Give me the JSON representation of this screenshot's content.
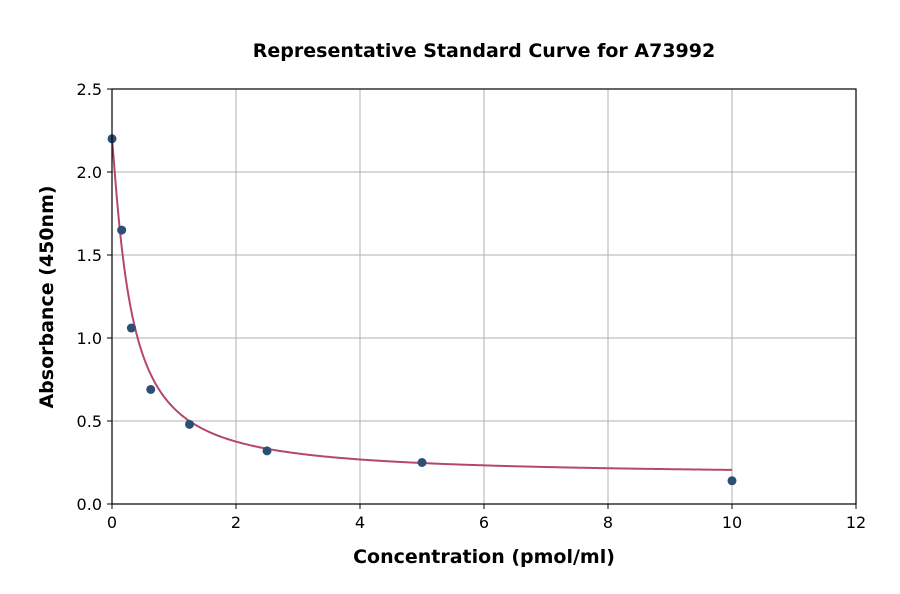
{
  "chart_data": {
    "type": "scatter",
    "title": "Representative Standard Curve for A73992",
    "xlabel": "Concentration (pmol/ml)",
    "ylabel": "Absorbance (450nm)",
    "xlim": [
      0,
      12
    ],
    "ylim": [
      0,
      2.5
    ],
    "xticks": [
      "0",
      "2",
      "4",
      "6",
      "8",
      "10",
      "12"
    ],
    "yticks": [
      "0.0",
      "0.5",
      "1.0",
      "1.5",
      "2.0",
      "2.5"
    ],
    "grid": true,
    "series": [
      {
        "name": "Standards",
        "type": "scatter",
        "color": "#2d4f75",
        "x": [
          0,
          0.156,
          0.3125,
          0.625,
          1.25,
          2.5,
          5,
          10
        ],
        "y": [
          2.2,
          1.65,
          1.06,
          0.69,
          0.48,
          0.32,
          0.25,
          0.14
        ]
      },
      {
        "name": "Fitted curve",
        "type": "line",
        "color": "#b5476f",
        "x_range": [
          0,
          10
        ]
      }
    ]
  }
}
